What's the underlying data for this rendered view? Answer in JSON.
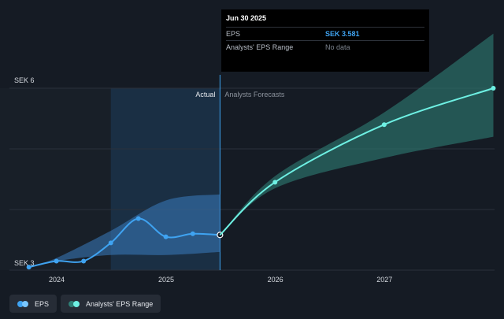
{
  "tooltip": {
    "date": "Jun 30 2025",
    "rows": [
      {
        "label": "EPS",
        "value": "SEK 3.581"
      },
      {
        "label": "Analysts' EPS Range",
        "value": "No data"
      }
    ]
  },
  "chart_data": {
    "type": "line",
    "yTickLabels": [
      "SEK 6",
      "SEK 3"
    ],
    "xTickLabels": [
      "2024",
      "2025",
      "2026",
      "2027"
    ],
    "regionLabels": {
      "actual": "Actual",
      "forecast": "Analysts Forecasts"
    },
    "ylim": [
      3,
      6
    ],
    "xlim": [
      "2023-10",
      "2028-03"
    ],
    "grid": true,
    "legend_placement": "bottom-left",
    "series": [
      {
        "name": "EPS",
        "color": "#3fa3f1",
        "points": [
          {
            "x": "2023-09-30",
            "y": 3.05
          },
          {
            "x": "2023-12-31",
            "y": 3.15
          },
          {
            "x": "2024-03-31",
            "y": 3.15
          },
          {
            "x": "2024-06-30",
            "y": 3.45
          },
          {
            "x": "2024-09-30",
            "y": 3.85
          },
          {
            "x": "2024-12-31",
            "y": 3.55
          },
          {
            "x": "2025-03-31",
            "y": 3.6
          },
          {
            "x": "2025-06-30",
            "y": 3.581
          }
        ]
      },
      {
        "name": "Forecast",
        "color": "#6ef0e3",
        "points": [
          {
            "x": "2025-06-30",
            "y": 3.581
          },
          {
            "x": "2025-12-31",
            "y": 4.45
          },
          {
            "x": "2026-12-31",
            "y": 5.4
          },
          {
            "x": "2027-12-31",
            "y": 6.0
          }
        ]
      }
    ],
    "bands": [
      {
        "name": "past-range",
        "color": "#3b7bbf",
        "x": [
          "2023-09-30",
          "2023-12-31",
          "2024-06-30",
          "2024-12-31",
          "2025-06-30"
        ],
        "lower": [
          3.05,
          3.15,
          3.25,
          3.25,
          3.3
        ],
        "upper": [
          3.05,
          3.2,
          3.65,
          4.15,
          4.25
        ]
      },
      {
        "name": "forecast-range",
        "color": "#2e7e75",
        "x": [
          "2025-06-30",
          "2025-12-31",
          "2026-12-31",
          "2027-12-31"
        ],
        "lower": [
          3.581,
          4.35,
          4.85,
          5.2
        ],
        "upper": [
          3.581,
          4.55,
          5.6,
          6.9
        ]
      }
    ],
    "legend": [
      {
        "label": "EPS",
        "colors": [
          "#3fa3f1",
          "#79c7ff"
        ]
      },
      {
        "label": "Analysts' EPS Range",
        "colors": [
          "#2e7e75",
          "#6ef0e3"
        ]
      }
    ],
    "shading": {
      "pastRegionColor": "#1b3349",
      "historyRegionColor": "#181f28"
    }
  }
}
